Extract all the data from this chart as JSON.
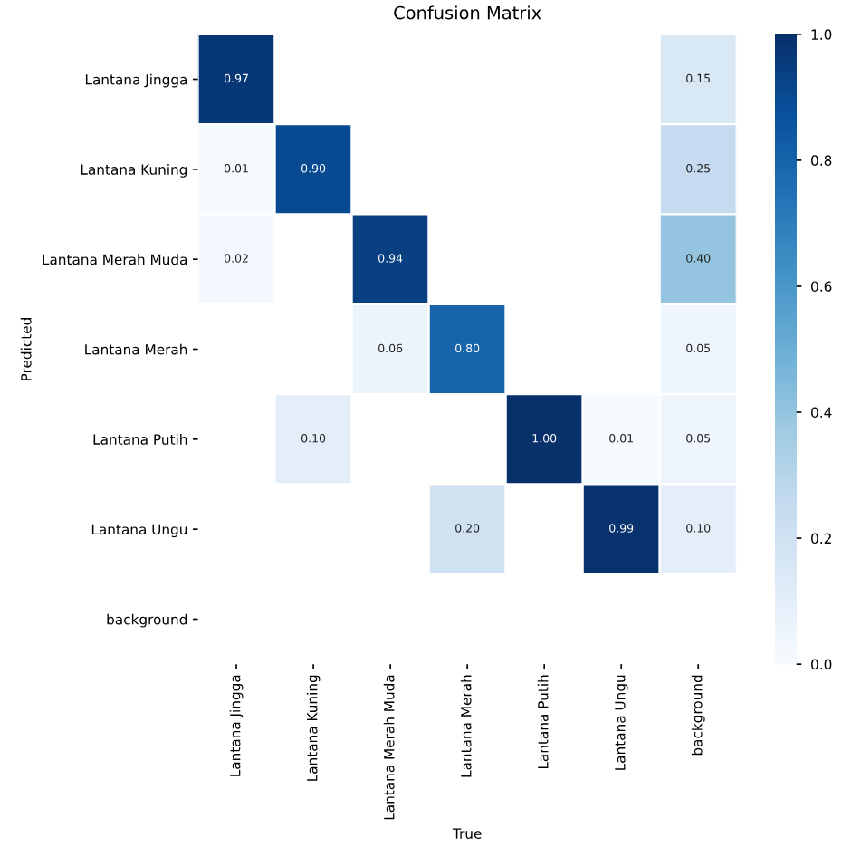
{
  "chart_data": {
    "type": "heatmap",
    "title": "Confusion Matrix",
    "xlabel": "True",
    "ylabel": "Predicted",
    "categories": [
      "Lantana Jingga",
      "Lantana Kuning",
      "Lantana Merah Muda",
      "Lantana Merah",
      "Lantana Putih",
      "Lantana Ungu",
      "background"
    ],
    "y_categories": [
      "Lantana Jingga",
      "Lantana Kuning",
      "Lantana Merah Muda",
      "Lantana Merah",
      "Lantana Putih",
      "Lantana Ungu",
      "background"
    ],
    "cells": [
      [
        0.97,
        null,
        null,
        null,
        null,
        null,
        0.15
      ],
      [
        0.01,
        0.9,
        null,
        null,
        null,
        null,
        0.25
      ],
      [
        0.02,
        null,
        0.94,
        null,
        null,
        null,
        0.4
      ],
      [
        null,
        null,
        0.06,
        0.8,
        null,
        null,
        0.05
      ],
      [
        null,
        0.1,
        null,
        null,
        1.0,
        0.01,
        0.05
      ],
      [
        null,
        null,
        null,
        0.2,
        null,
        0.99,
        0.1
      ],
      [
        null,
        null,
        null,
        null,
        null,
        null,
        null
      ]
    ],
    "cell_labels": [
      [
        "0.97",
        null,
        null,
        null,
        null,
        null,
        "0.15"
      ],
      [
        "0.01",
        "0.90",
        null,
        null,
        null,
        null,
        "0.25"
      ],
      [
        "0.02",
        null,
        "0.94",
        null,
        null,
        null,
        "0.40"
      ],
      [
        null,
        null,
        "0.06",
        "0.80",
        null,
        null,
        "0.05"
      ],
      [
        null,
        "0.10",
        null,
        null,
        "1.00",
        "0.01",
        "0.05"
      ],
      [
        null,
        null,
        null,
        "0.20",
        null,
        "0.99",
        "0.10"
      ],
      [
        null,
        null,
        null,
        null,
        null,
        null,
        null
      ]
    ],
    "clim": [
      0,
      1
    ],
    "cticks": [
      {
        "value": 0,
        "label": "0.0"
      },
      {
        "value": 0.2,
        "label": "0.2"
      },
      {
        "value": 0.4,
        "label": "0.4"
      },
      {
        "value": 0.6,
        "label": "0.6"
      },
      {
        "value": 0.8,
        "label": "0.8"
      },
      {
        "value": 1,
        "label": "1.0"
      }
    ]
  }
}
